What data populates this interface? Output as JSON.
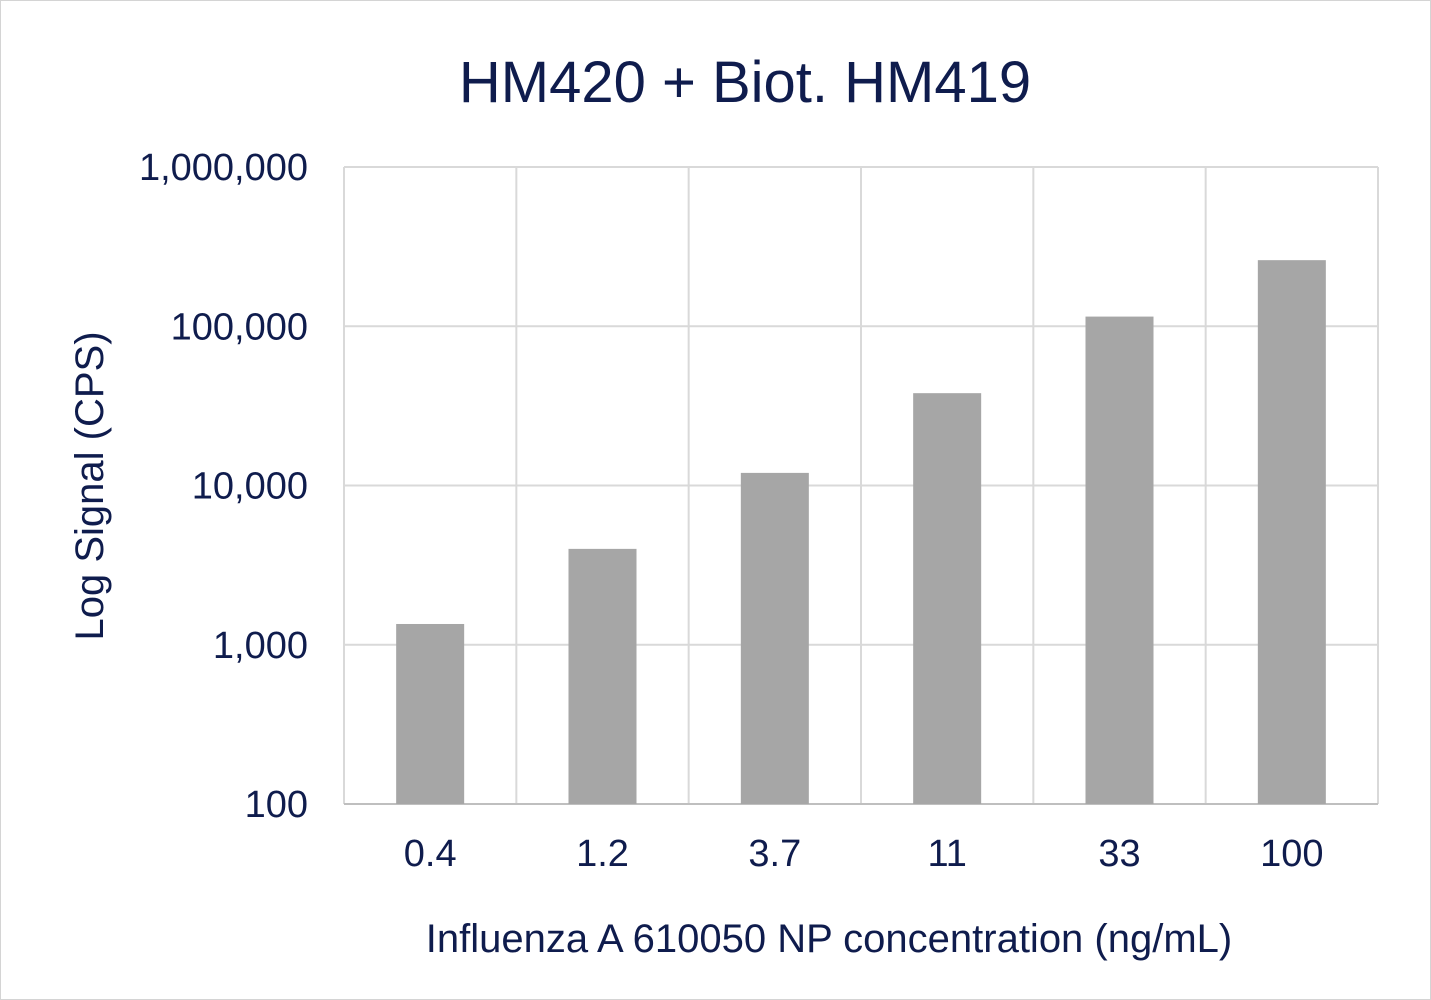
{
  "chart_data": {
    "type": "bar",
    "title": "HM420 + Biot. HM419",
    "xlabel": "Influenza A 610050 NP concentration (ng/mL)",
    "ylabel": "Log Signal (CPS)",
    "yscale": "log",
    "ylim": [
      100,
      1000000
    ],
    "yticks": [
      100,
      1000,
      10000,
      100000,
      1000000
    ],
    "ytick_labels": [
      "100",
      "1,000",
      "10,000",
      "100,000",
      "1,000,000"
    ],
    "categories": [
      "0.4",
      "1.2",
      "3.7",
      "11",
      "33",
      "100"
    ],
    "values": [
      1350,
      4000,
      12000,
      38000,
      115000,
      260000
    ],
    "grid": true,
    "legend": "none",
    "colors": {
      "bar": "#a6a6a6",
      "grid": "#d9d9d9",
      "text": "#0f1c4d",
      "axis": "#bfbfbf"
    }
  }
}
